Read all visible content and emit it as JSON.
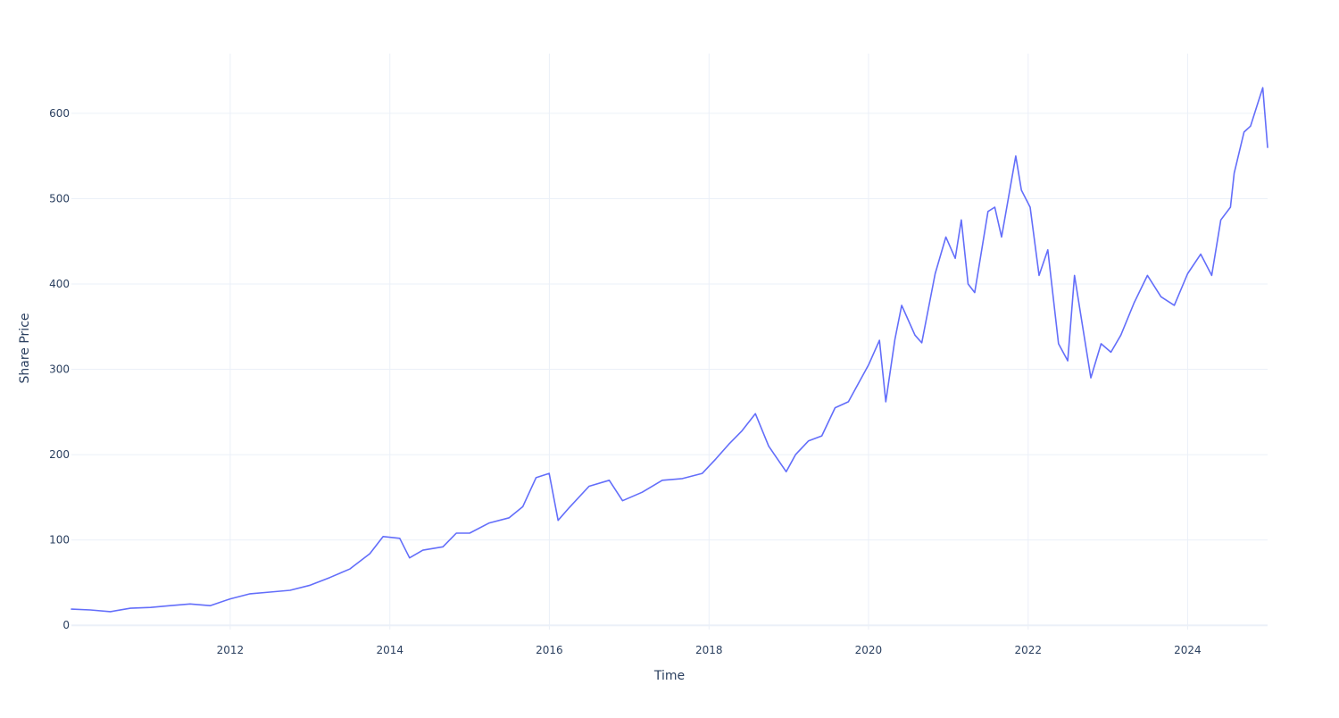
{
  "chart_data": {
    "type": "line",
    "title": "",
    "xlabel": "Time",
    "ylabel": "Share Price",
    "xlim": [
      "2010-01-04",
      "2025-01-01"
    ],
    "ylim": [
      -5,
      670
    ],
    "x_ticks": [
      "2012",
      "2014",
      "2016",
      "2018",
      "2020",
      "2022",
      "2024"
    ],
    "y_ticks": [
      0,
      100,
      200,
      300,
      400,
      500,
      600
    ],
    "grid": true,
    "legend": "none",
    "series": [
      {
        "color": "#636efa",
        "points": [
          [
            "2010-01-04",
            19
          ],
          [
            "2010-04-01",
            18
          ],
          [
            "2010-07-01",
            16
          ],
          [
            "2010-10-01",
            20
          ],
          [
            "2011-01-01",
            21
          ],
          [
            "2011-04-01",
            23
          ],
          [
            "2011-07-01",
            25
          ],
          [
            "2011-10-01",
            23
          ],
          [
            "2012-01-01",
            31
          ],
          [
            "2012-04-01",
            37
          ],
          [
            "2012-07-01",
            39
          ],
          [
            "2012-10-01",
            41
          ],
          [
            "2013-01-01",
            47
          ],
          [
            "2013-04-01",
            56
          ],
          [
            "2013-07-01",
            66
          ],
          [
            "2013-10-01",
            84
          ],
          [
            "2013-12-01",
            104
          ],
          [
            "2014-02-15",
            102
          ],
          [
            "2014-04-01",
            79
          ],
          [
            "2014-06-01",
            88
          ],
          [
            "2014-09-01",
            92
          ],
          [
            "2014-11-01",
            108
          ],
          [
            "2015-01-01",
            108
          ],
          [
            "2015-04-01",
            120
          ],
          [
            "2015-07-01",
            126
          ],
          [
            "2015-09-01",
            139
          ],
          [
            "2015-11-01",
            173
          ],
          [
            "2015-12-31",
            178
          ],
          [
            "2016-02-10",
            123
          ],
          [
            "2016-04-01",
            138
          ],
          [
            "2016-07-01",
            163
          ],
          [
            "2016-10-01",
            170
          ],
          [
            "2016-12-01",
            146
          ],
          [
            "2017-03-01",
            156
          ],
          [
            "2017-06-01",
            170
          ],
          [
            "2017-09-01",
            172
          ],
          [
            "2017-12-01",
            178
          ],
          [
            "2018-02-01",
            195
          ],
          [
            "2018-04-01",
            212
          ],
          [
            "2018-06-01",
            228
          ],
          [
            "2018-08-01",
            248
          ],
          [
            "2018-10-01",
            210
          ],
          [
            "2018-12-20",
            180
          ],
          [
            "2019-02-01",
            200
          ],
          [
            "2019-04-01",
            216
          ],
          [
            "2019-06-01",
            222
          ],
          [
            "2019-08-01",
            255
          ],
          [
            "2019-10-01",
            262
          ],
          [
            "2020-01-01",
            305
          ],
          [
            "2020-02-20",
            334
          ],
          [
            "2020-03-20",
            262
          ],
          [
            "2020-05-01",
            335
          ],
          [
            "2020-06-01",
            375
          ],
          [
            "2020-08-01",
            340
          ],
          [
            "2020-09-01",
            331
          ],
          [
            "2020-11-01",
            412
          ],
          [
            "2020-12-20",
            455
          ],
          [
            "2021-02-01",
            430
          ],
          [
            "2021-03-01",
            475
          ],
          [
            "2021-04-01",
            400
          ],
          [
            "2021-05-01",
            390
          ],
          [
            "2021-07-01",
            485
          ],
          [
            "2021-08-01",
            490
          ],
          [
            "2021-09-01",
            455
          ],
          [
            "2021-11-05",
            550
          ],
          [
            "2021-12-01",
            510
          ],
          [
            "2022-01-10",
            490
          ],
          [
            "2022-02-20",
            410
          ],
          [
            "2022-04-01",
            440
          ],
          [
            "2022-05-20",
            330
          ],
          [
            "2022-07-01",
            310
          ],
          [
            "2022-08-01",
            410
          ],
          [
            "2022-09-01",
            360
          ],
          [
            "2022-10-15",
            290
          ],
          [
            "2022-12-01",
            330
          ],
          [
            "2023-01-15",
            320
          ],
          [
            "2023-03-01",
            340
          ],
          [
            "2023-05-01",
            378
          ],
          [
            "2023-07-01",
            410
          ],
          [
            "2023-09-01",
            385
          ],
          [
            "2023-11-01",
            375
          ],
          [
            "2024-01-01",
            412
          ],
          [
            "2024-03-01",
            435
          ],
          [
            "2024-04-20",
            410
          ],
          [
            "2024-06-01",
            475
          ],
          [
            "2024-07-15",
            490
          ],
          [
            "2024-08-01",
            530
          ],
          [
            "2024-09-15",
            578
          ],
          [
            "2024-10-15",
            585
          ],
          [
            "2024-11-15",
            610
          ],
          [
            "2024-12-10",
            630
          ],
          [
            "2025-01-01",
            560
          ]
        ]
      }
    ]
  }
}
